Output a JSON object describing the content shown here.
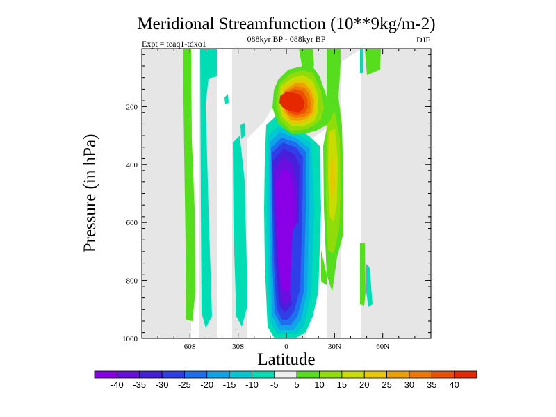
{
  "chart_data": {
    "type": "contour",
    "title": "Meridional Streamfunction (10**9kg/m-2)",
    "subtitle": "088kyr BP - 088kyr BP",
    "experiment": "Expt = teaq1-tdxo1",
    "season": "DJF",
    "xlabel": "Latitude",
    "ylabel": "Pressure (in hPa)",
    "xlim": [
      -90,
      90
    ],
    "ylim": [
      1000,
      0
    ],
    "x_ticks": [
      {
        "value": -60,
        "label": "60S"
      },
      {
        "value": -30,
        "label": "30S"
      },
      {
        "value": 0,
        "label": "0"
      },
      {
        "value": 30,
        "label": "30N"
      },
      {
        "value": 60,
        "label": "60N"
      }
    ],
    "y_ticks": [
      {
        "value": 200,
        "label": "200"
      },
      {
        "value": 400,
        "label": "400"
      },
      {
        "value": 600,
        "label": "600"
      },
      {
        "value": 800,
        "label": "800"
      },
      {
        "value": 1000,
        "label": "1000"
      }
    ],
    "colorbar": {
      "labels": [
        "-40",
        "-35",
        "-30",
        "-25",
        "-20",
        "-15",
        "-10",
        "-5",
        "5",
        "10",
        "15",
        "20",
        "25",
        "30",
        "35",
        "40"
      ],
      "colors": [
        "#8a00e6",
        "#6a0fe0",
        "#4820dc",
        "#2f3ee6",
        "#1e6ef0",
        "#0fa3e8",
        "#00c8d2",
        "#00dcb4",
        "#eeeeee",
        "#55dd1e",
        "#90dc0a",
        "#c8dc00",
        "#e6c800",
        "#eba000",
        "#ee7800",
        "#eb5000",
        "#e62800"
      ]
    },
    "background_color": "#e6e6e6",
    "features": [
      {
        "name": "southern-hadley-cell",
        "lat_center": 0,
        "lat_width": 12,
        "p_top": 280,
        "p_bottom": 990,
        "min_value": -40
      },
      {
        "name": "northern-upper-cell",
        "lat_center": 5,
        "lat_width": 16,
        "p_top": 120,
        "p_bottom": 300,
        "max_value": 40
      },
      {
        "name": "southern-ferrel-bands",
        "lat_range": [
          -60,
          -20
        ],
        "p_top": 30,
        "p_bottom": 960,
        "value_range": [
          -10,
          10
        ]
      },
      {
        "name": "northern-positive-band",
        "lat_range": [
          20,
          35
        ],
        "p_top": 150,
        "p_bottom": 900,
        "max_value": 20
      }
    ]
  }
}
